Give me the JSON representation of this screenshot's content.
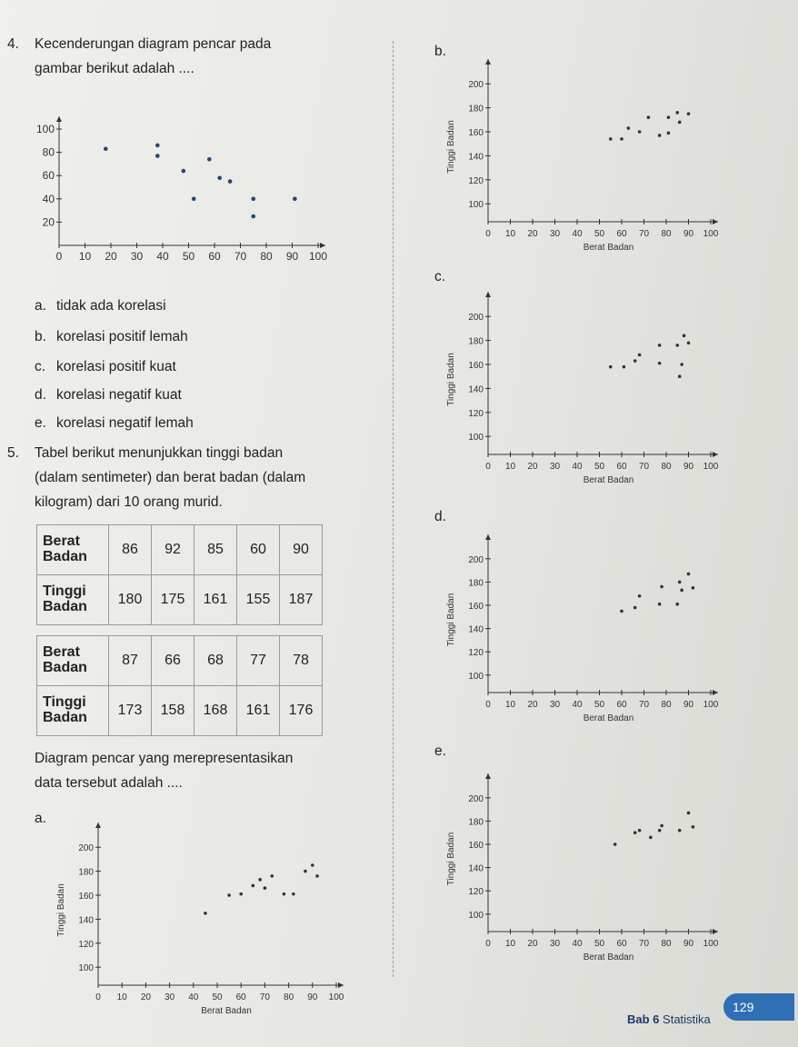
{
  "q4": {
    "number": "4.",
    "text_line1": "Kecenderungan diagram pencar pada",
    "text_line2": "gambar berikut adalah ....",
    "options": [
      {
        "letter": "a.",
        "text": "tidak ada korelasi"
      },
      {
        "letter": "b.",
        "text": "korelasi positif lemah"
      },
      {
        "letter": "c.",
        "text": "korelasi positif kuat"
      },
      {
        "letter": "d.",
        "text": "korelasi negatif kuat"
      },
      {
        "letter": "e.",
        "text": "korelasi negatif lemah"
      }
    ]
  },
  "q5": {
    "number": "5.",
    "text_line1": "Tabel berikut menunjukkan tinggi badan",
    "text_line2": "(dalam sentimeter) dan berat badan (dalam",
    "text_line3": "kilogram) dari 10 orang murid.",
    "table1": {
      "row1_header_1": "Berat",
      "row1_header_2": "Badan",
      "row1": [
        "86",
        "92",
        "85",
        "60",
        "90"
      ],
      "row2_header_1": "Tinggi",
      "row2_header_2": "Badan",
      "row2": [
        "180",
        "175",
        "161",
        "155",
        "187"
      ]
    },
    "table2": {
      "row1_header_1": "Berat",
      "row1_header_2": "Badan",
      "row1": [
        "87",
        "66",
        "68",
        "77",
        "78"
      ],
      "row2_header_1": "Tinggi",
      "row2_header_2": "Badan",
      "row2": [
        "173",
        "158",
        "168",
        "161",
        "176"
      ]
    },
    "question_line1": "Diagram pencar yang merepresentasikan",
    "question_line2": "data tersebut adalah ...."
  },
  "footer": {
    "chapter": "Bab 6",
    "title": "Statistika",
    "page": "129"
  },
  "chart_data": [
    {
      "id": "q4-plot",
      "type": "scatter",
      "xlabel": "",
      "ylabel": "",
      "xlim": [
        0,
        100
      ],
      "ylim": [
        0,
        100
      ],
      "xticks": [
        0,
        10,
        20,
        30,
        40,
        50,
        60,
        70,
        80,
        90,
        100
      ],
      "yticks": [
        20,
        40,
        60,
        80,
        100
      ],
      "points": [
        [
          18,
          83
        ],
        [
          38,
          86
        ],
        [
          38,
          77
        ],
        [
          48,
          64
        ],
        [
          58,
          74
        ],
        [
          62,
          58
        ],
        [
          66,
          55
        ],
        [
          52,
          40
        ],
        [
          75,
          40
        ],
        [
          91,
          40
        ],
        [
          75,
          25
        ]
      ]
    },
    {
      "id": "option-b",
      "label": "b.",
      "type": "scatter",
      "xlabel": "Berat Badan",
      "ylabel": "Tinggi Badan",
      "xlim": [
        0,
        100
      ],
      "ylim": [
        85,
        210
      ],
      "xticks": [
        0,
        10,
        20,
        30,
        40,
        50,
        60,
        70,
        80,
        90,
        100
      ],
      "yticks": [
        100,
        120,
        140,
        160,
        180,
        200
      ],
      "points": [
        [
          55,
          154
        ],
        [
          60,
          154
        ],
        [
          63,
          163
        ],
        [
          68,
          160
        ],
        [
          72,
          172
        ],
        [
          77,
          157
        ],
        [
          81,
          159
        ],
        [
          81,
          172
        ],
        [
          85,
          176
        ],
        [
          86,
          168
        ],
        [
          90,
          175
        ]
      ]
    },
    {
      "id": "option-c",
      "label": "c.",
      "type": "scatter",
      "xlabel": "Berat Badan",
      "ylabel": "Tinggi Badan",
      "xlim": [
        0,
        100
      ],
      "ylim": [
        85,
        210
      ],
      "xticks": [
        0,
        10,
        20,
        30,
        40,
        50,
        60,
        70,
        80,
        90,
        100
      ],
      "yticks": [
        100,
        120,
        140,
        160,
        180,
        200
      ],
      "points": [
        [
          55,
          158
        ],
        [
          61,
          158
        ],
        [
          66,
          163
        ],
        [
          68,
          168
        ],
        [
          77,
          161
        ],
        [
          77,
          176
        ],
        [
          85,
          176
        ],
        [
          86,
          150
        ],
        [
          87,
          160
        ],
        [
          88,
          184
        ],
        [
          90,
          178
        ]
      ]
    },
    {
      "id": "option-d",
      "label": "d.",
      "type": "scatter",
      "xlabel": "Berat Badan",
      "ylabel": "Tinggi Badan",
      "xlim": [
        0,
        100
      ],
      "ylim": [
        85,
        210
      ],
      "xticks": [
        0,
        10,
        20,
        30,
        40,
        50,
        60,
        70,
        80,
        90,
        100
      ],
      "yticks": [
        100,
        120,
        140,
        160,
        180,
        200
      ],
      "points": [
        [
          60,
          155
        ],
        [
          66,
          158
        ],
        [
          68,
          168
        ],
        [
          77,
          161
        ],
        [
          78,
          176
        ],
        [
          85,
          161
        ],
        [
          86,
          180
        ],
        [
          87,
          173
        ],
        [
          90,
          187
        ],
        [
          92,
          175
        ]
      ]
    },
    {
      "id": "option-e",
      "label": "e.",
      "type": "scatter",
      "xlabel": "Berat Badan",
      "ylabel": "Tinggi Badan",
      "xlim": [
        0,
        100
      ],
      "ylim": [
        85,
        210
      ],
      "xticks": [
        0,
        10,
        20,
        30,
        40,
        50,
        60,
        70,
        80,
        90,
        100
      ],
      "yticks": [
        100,
        120,
        140,
        160,
        180,
        200
      ],
      "points": [
        [
          57,
          160
        ],
        [
          66,
          170
        ],
        [
          68,
          172
        ],
        [
          73,
          166
        ],
        [
          77,
          172
        ],
        [
          78,
          176
        ],
        [
          86,
          172
        ],
        [
          90,
          187
        ],
        [
          92,
          175
        ]
      ]
    },
    {
      "id": "option-a",
      "label": "a.",
      "type": "scatter",
      "xlabel": "Berat Badan",
      "ylabel": "Tinggi Badan",
      "xlim": [
        0,
        100
      ],
      "ylim": [
        85,
        210
      ],
      "xticks": [
        0,
        10,
        20,
        30,
        40,
        50,
        60,
        70,
        80,
        90,
        100
      ],
      "yticks": [
        100,
        120,
        140,
        160,
        180,
        200
      ],
      "points": [
        [
          45,
          145
        ],
        [
          55,
          160
        ],
        [
          60,
          161
        ],
        [
          65,
          168
        ],
        [
          68,
          173
        ],
        [
          70,
          166
        ],
        [
          73,
          176
        ],
        [
          78,
          161
        ],
        [
          82,
          161
        ],
        [
          87,
          180
        ],
        [
          90,
          185
        ],
        [
          92,
          176
        ]
      ]
    }
  ]
}
